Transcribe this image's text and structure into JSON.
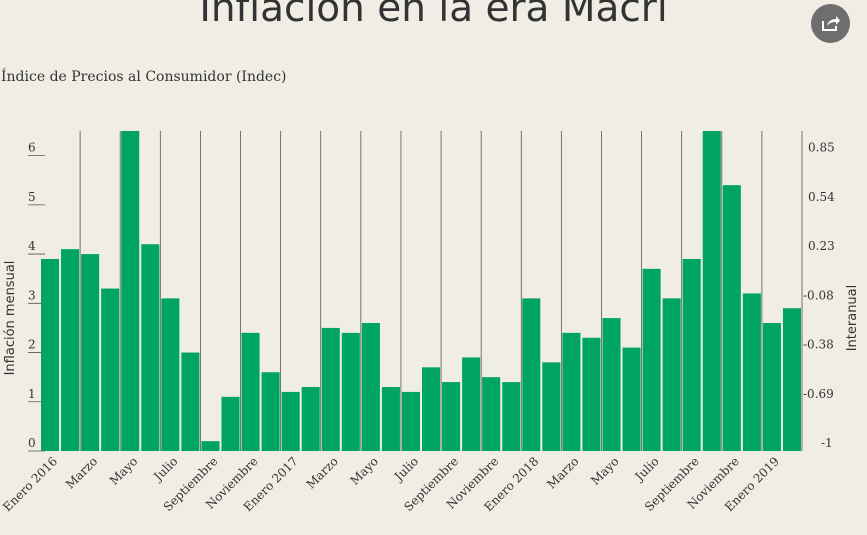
{
  "header": {
    "title": "Inflación en la era Macri",
    "subtitle": "Índice de Precios al Consumidor (Indec)",
    "share_icon": "share-icon"
  },
  "colors": {
    "bar": "#00a562",
    "background": "#efede4",
    "grid": "#555555"
  },
  "chart_data": {
    "type": "bar",
    "title": "Inflación en la era Macri",
    "subtitle": "Índice de Precios al Consumidor (Indec)",
    "ylabel": "Inflación mensual",
    "y2label": "Interanual",
    "ylim": [
      0,
      6.5
    ],
    "yticks": [
      0,
      1,
      2,
      3,
      4,
      5,
      6
    ],
    "y2ticks": [
      "-1",
      "-0.69",
      "-0.38",
      "-0.08",
      "0.23",
      "0.54",
      "0.85"
    ],
    "xticklabels": [
      "Enero 2016",
      "Marzo",
      "Mayo",
      "Julio",
      "Septiembre",
      "Noviembre",
      "Enero 2017",
      "Marzo",
      "Mayo",
      "Julio",
      "Septiembre",
      "Noviembre",
      "Enero 2018",
      "Marzo",
      "Mayo",
      "Julio",
      "Septiembre",
      "Noviembre",
      "Enero 2019"
    ],
    "categories": [
      "Ene 2016",
      "Feb 2016",
      "Mar 2016",
      "Abr 2016",
      "May 2016",
      "Jun 2016",
      "Jul 2016",
      "Ago 2016",
      "Sep 2016",
      "Oct 2016",
      "Nov 2016",
      "Dic 2016",
      "Ene 2017",
      "Feb 2017",
      "Mar 2017",
      "Abr 2017",
      "May 2017",
      "Jun 2017",
      "Jul 2017",
      "Ago 2017",
      "Sep 2017",
      "Oct 2017",
      "Nov 2017",
      "Dic 2017",
      "Ene 2018",
      "Feb 2018",
      "Mar 2018",
      "Abr 2018",
      "May 2018",
      "Jun 2018",
      "Jul 2018",
      "Ago 2018",
      "Sep 2018",
      "Oct 2018",
      "Nov 2018",
      "Dic 2018",
      "Ene 2019",
      "Feb 2019"
    ],
    "values": [
      3.9,
      4.1,
      4.0,
      3.3,
      6.5,
      4.2,
      3.1,
      2.0,
      0.2,
      1.1,
      2.4,
      1.6,
      1.2,
      1.3,
      2.5,
      2.4,
      2.6,
      1.3,
      1.2,
      1.7,
      1.4,
      1.9,
      1.5,
      1.4,
      3.1,
      1.8,
      2.4,
      2.3,
      2.7,
      2.1,
      3.7,
      3.1,
      3.9,
      6.5,
      5.4,
      3.2,
      2.6,
      2.9
    ]
  }
}
